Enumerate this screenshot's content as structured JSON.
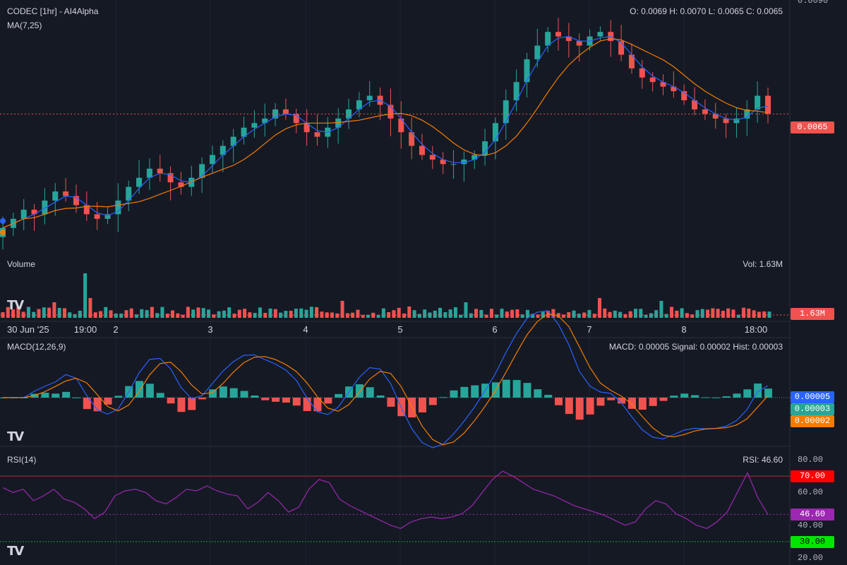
{
  "header": {
    "title": "CODEC [1hr] - AI4Alpha",
    "ma_label": "MA(7,25)",
    "ohlc": "O: 0.0069 H: 0.0070 L: 0.0065 C: 0.0065",
    "price_axis_top": "0.0090"
  },
  "volume_panel": {
    "label": "Volume",
    "value_text": "Vol: 1.63M",
    "badge": "1.63M"
  },
  "macd_panel": {
    "label": "MACD(12,26,9)",
    "value_text": "MACD: 0.00005 Signal: 0.00002 Hist: 0.00003",
    "badges": [
      "0.00005",
      "0.00003",
      "0.00002"
    ]
  },
  "rsi_panel": {
    "label": "RSI(14)",
    "value_text": "RSI: 46.60",
    "axis_labels": [
      "80.00",
      "60.00",
      "40.00",
      "20.00"
    ],
    "badges": [
      "70.00",
      "46.60",
      "30.00"
    ]
  },
  "price_badge": "0.0065",
  "x_axis": {
    "ticks": [
      "30 Jun '25",
      "19:00",
      "2",
      "3",
      "4",
      "5",
      "6",
      "7",
      "8",
      "18:00"
    ]
  },
  "colors": {
    "background": "#151924",
    "up": "#26a69a",
    "down": "#ef5350",
    "ma7": "#2962ff",
    "ma25": "#f57c00",
    "rsi": "#9c27b0"
  },
  "chart_data": [
    {
      "type": "candlestick",
      "title": "CODEC [1hr] - AI4Alpha",
      "xlabel": "",
      "ylabel": "",
      "x_range": [
        "2025-06-30 15:00",
        "2025-07-08 21:00"
      ],
      "close": [
        0.004,
        0.0042,
        0.0044,
        0.0043,
        0.0046,
        0.0048,
        0.0047,
        0.0045,
        0.0043,
        0.0042,
        0.0043,
        0.0046,
        0.0049,
        0.0051,
        0.0053,
        0.0052,
        0.005,
        0.0049,
        0.0051,
        0.0054,
        0.0056,
        0.0058,
        0.006,
        0.0062,
        0.0063,
        0.0064,
        0.0066,
        0.0065,
        0.0063,
        0.0061,
        0.006,
        0.0062,
        0.0064,
        0.0066,
        0.0068,
        0.0069,
        0.0067,
        0.0064,
        0.0061,
        0.0058,
        0.0056,
        0.0055,
        0.0054,
        0.0054,
        0.0055,
        0.0056,
        0.0059,
        0.0063,
        0.0068,
        0.0072,
        0.0077,
        0.008,
        0.0083,
        0.0082,
        0.0081,
        0.008,
        0.0082,
        0.0083,
        0.0081,
        0.0078,
        0.0075,
        0.0073,
        0.0072,
        0.0071,
        0.007,
        0.0068,
        0.0066,
        0.0065,
        0.0064,
        0.0063,
        0.0064,
        0.0066,
        0.0069,
        0.0065
      ],
      "ma7_last": 0.0066,
      "ma25_last": 0.0065,
      "last_price": 0.0065
    },
    {
      "type": "bar",
      "title": "Volume",
      "xlabel": "",
      "ylabel": "",
      "last_value": "1.63M"
    },
    {
      "type": "line",
      "title": "MACD(12,26,9)",
      "xlabel": "",
      "ylabel": "",
      "series": [
        {
          "name": "MACD",
          "last": 5e-05
        },
        {
          "name": "Signal",
          "last": 2e-05
        },
        {
          "name": "Hist",
          "last": 3e-05
        }
      ]
    },
    {
      "type": "line",
      "title": "RSI(14)",
      "xlabel": "",
      "ylabel": "",
      "ylim": [
        20,
        80
      ],
      "levels": [
        70,
        30
      ],
      "last": 46.6,
      "values": [
        63,
        60,
        62,
        55,
        58,
        62,
        56,
        54,
        50,
        44,
        48,
        58,
        61,
        62,
        60,
        55,
        53,
        57,
        62,
        61,
        64,
        61,
        59,
        58,
        50,
        54,
        60,
        55,
        48,
        51,
        62,
        68,
        66,
        56,
        52,
        49,
        46,
        43,
        40,
        38,
        42,
        44,
        45,
        44,
        45,
        47,
        52,
        60,
        68,
        73,
        70,
        66,
        62,
        60,
        58,
        55,
        52,
        50,
        48,
        46,
        43,
        40,
        42,
        50,
        55,
        53,
        47,
        44,
        40,
        38,
        42,
        48,
        60,
        72,
        57,
        46.6
      ]
    }
  ]
}
